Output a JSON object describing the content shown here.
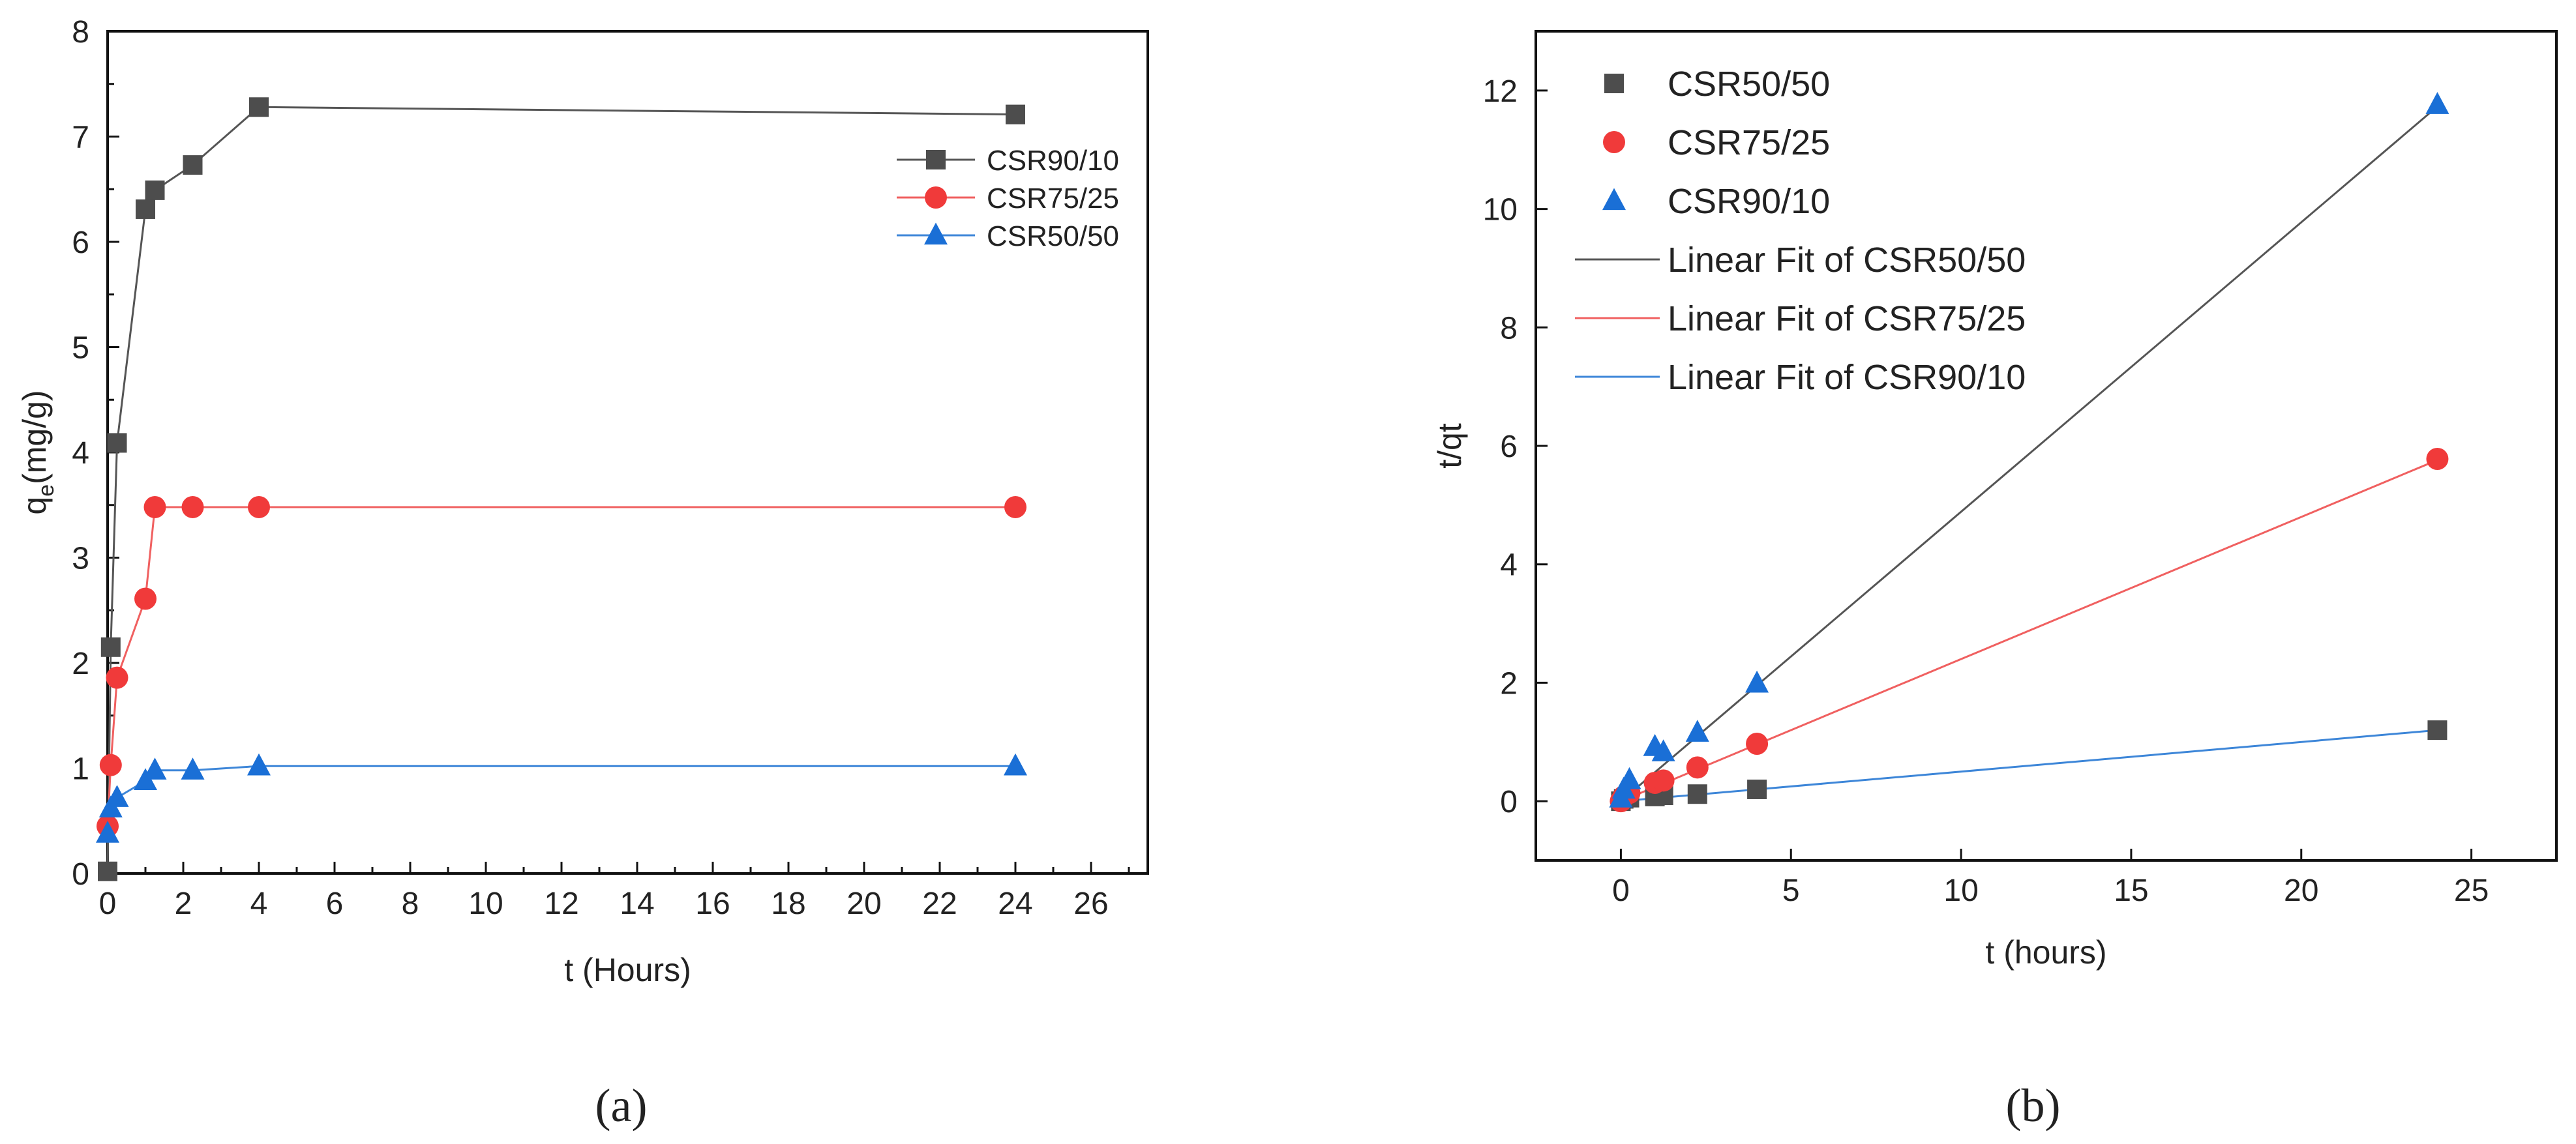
{
  "chart_data": [
    {
      "id": "a",
      "type": "line",
      "panel_label": "(a)",
      "xlabel": "t (Hours)",
      "ylabel_main": "q",
      "ylabel_sub": "e",
      "ylabel_rest": "(mg/g)",
      "xlim": [
        0,
        27.5
      ],
      "ylim": [
        0,
        8
      ],
      "xticks": [
        0,
        2,
        4,
        6,
        8,
        10,
        12,
        14,
        16,
        18,
        20,
        22,
        24,
        26
      ],
      "yticks": [
        0,
        1,
        2,
        3,
        4,
        5,
        6,
        7,
        8
      ],
      "legend_position": "top-right",
      "series": [
        {
          "name": "CSR90/10",
          "marker": "square",
          "color": "#4d4d4d",
          "line_color": "#555555",
          "x": [
            0,
            0.083,
            0.25,
            1,
            1.25,
            2.25,
            4,
            24
          ],
          "y": [
            0.02,
            2.15,
            4.09,
            6.31,
            6.49,
            6.73,
            7.28,
            7.21
          ]
        },
        {
          "name": "CSR75/25",
          "marker": "circle",
          "color": "#f03a3a",
          "line_color": "#f06060",
          "x": [
            0,
            0.083,
            0.25,
            1,
            1.25,
            2.25,
            4,
            24
          ],
          "y": [
            0.45,
            1.03,
            1.86,
            2.61,
            3.48,
            3.48,
            3.48,
            3.48
          ]
        },
        {
          "name": "CSR50/50",
          "marker": "triangle",
          "color": "#1a6fd6",
          "line_color": "#3d86d8",
          "x": [
            0,
            0.083,
            0.25,
            1,
            1.25,
            2.25,
            4,
            24
          ],
          "y": [
            0.38,
            0.62,
            0.72,
            0.88,
            0.98,
            0.98,
            1.02,
            1.02
          ]
        }
      ]
    },
    {
      "id": "b",
      "type": "scatter",
      "panel_label": "(b)",
      "xlabel": "t (hours)",
      "ylabel": "t/qt",
      "xlim": [
        -2.5,
        27.5
      ],
      "ylim": [
        -1,
        13
      ],
      "xticks": [
        0,
        5,
        10,
        15,
        20,
        25
      ],
      "yticks": [
        0,
        2,
        4,
        6,
        8,
        10,
        12
      ],
      "legend_position": "top-left",
      "series": [
        {
          "name": "CSR50/50",
          "marker": "square",
          "color": "#4d4d4d",
          "x": [
            0,
            0.083,
            0.25,
            1,
            1.25,
            2.25,
            4,
            24
          ],
          "y": [
            0.0,
            0.04,
            0.06,
            0.08,
            0.1,
            0.12,
            0.2,
            1.2
          ]
        },
        {
          "name": "CSR75/25",
          "marker": "circle",
          "color": "#f03a3a",
          "x": [
            0,
            0.083,
            0.25,
            1,
            1.25,
            2.25,
            4,
            24
          ],
          "y": [
            0.0,
            0.08,
            0.14,
            0.31,
            0.35,
            0.57,
            0.97,
            5.78
          ]
        },
        {
          "name": "CSR90/10",
          "marker": "triangle",
          "color": "#1a6fd6",
          "x": [
            0,
            0.083,
            0.25,
            1,
            1.25,
            2.25,
            4,
            24
          ],
          "y": [
            0.05,
            0.2,
            0.36,
            0.92,
            0.83,
            1.16,
            1.99,
            11.76
          ]
        }
      ],
      "fits": [
        {
          "name": "Linear Fit of CSR50/50",
          "color": "#555555",
          "x": [
            0,
            24
          ],
          "y": [
            0.0,
            11.73
          ]
        },
        {
          "name": "Linear Fit of CSR75/25",
          "color": "#f06060",
          "x": [
            0,
            24
          ],
          "y": [
            0.0,
            5.76
          ]
        },
        {
          "name": "Linear Fit of CSR90/10",
          "color": "#3d86d8",
          "x": [
            0,
            24
          ],
          "y": [
            0.0,
            1.2
          ]
        }
      ]
    }
  ]
}
